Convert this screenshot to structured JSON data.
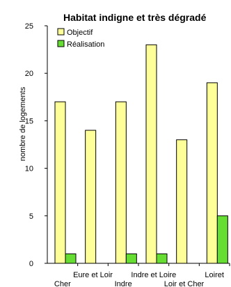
{
  "chart_data": {
    "type": "bar",
    "title": "Habitat indigne et très dégradé",
    "xlabel": "",
    "ylabel": "nombre de logements",
    "ylim": [
      0,
      25
    ],
    "yticks": [
      0,
      5,
      10,
      15,
      20,
      25
    ],
    "grid": false,
    "legend_position": "top-left",
    "categories": [
      "Cher",
      "Eure et Loir",
      "Indre",
      "Indre et Loire",
      "Loir et Cher",
      "Loiret"
    ],
    "series": [
      {
        "name": "Objectif",
        "color": "#ffff99",
        "values": [
          17,
          14,
          17,
          23,
          13,
          19
        ]
      },
      {
        "name": "Réalisation",
        "color": "#66dd33",
        "values": [
          1,
          0,
          1,
          1,
          0,
          5
        ]
      }
    ]
  }
}
